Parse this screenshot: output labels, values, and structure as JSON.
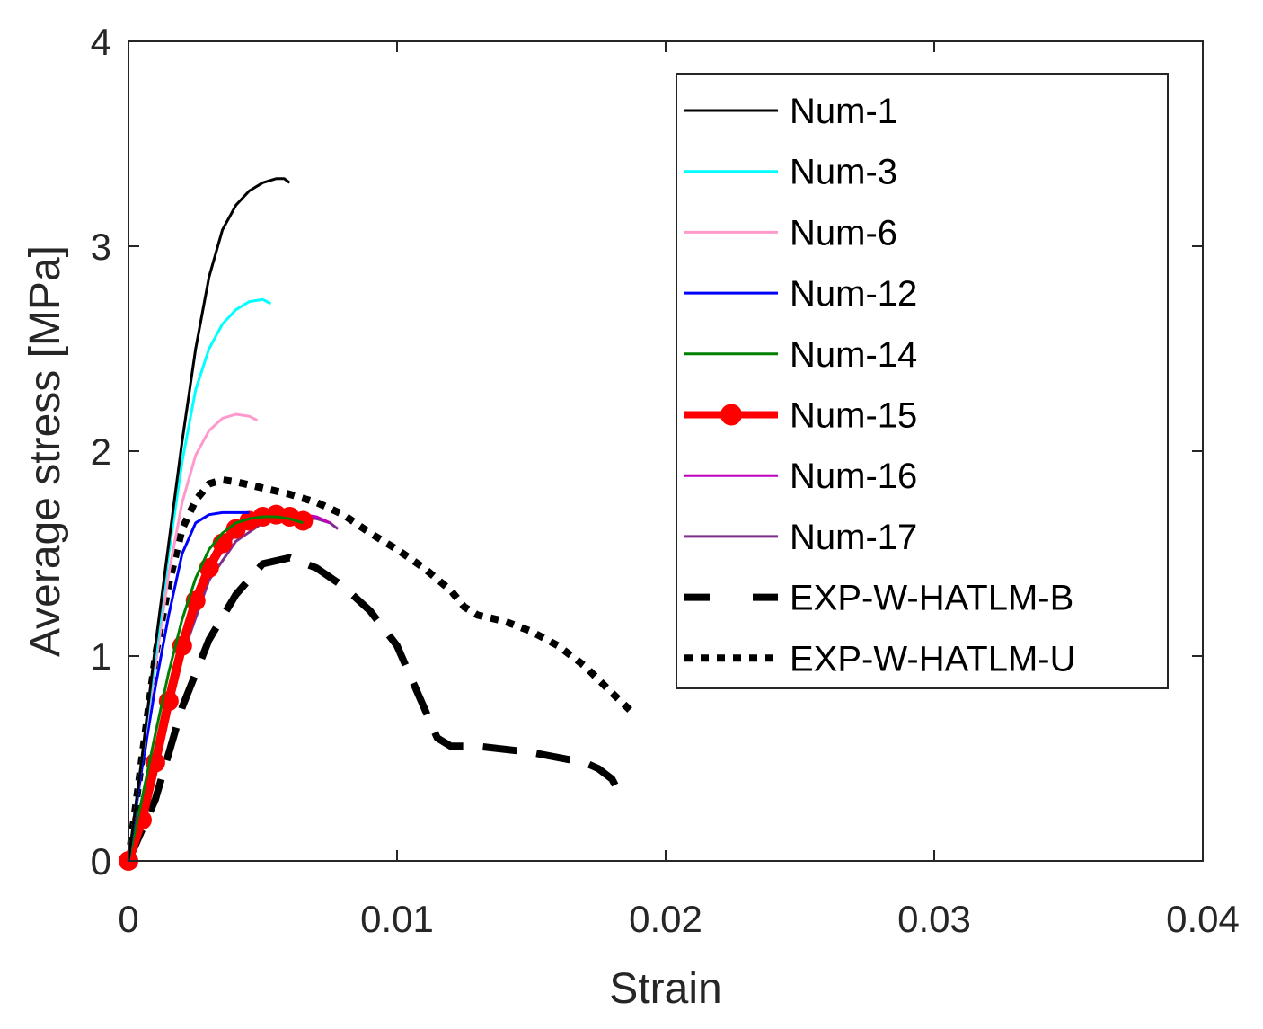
{
  "chart_data": {
    "type": "line",
    "title": "",
    "xlabel": "Strain",
    "ylabel": "Average stress [MPa]",
    "xlim": [
      0,
      0.04
    ],
    "ylim": [
      0,
      4
    ],
    "xticks": [
      0,
      0.01,
      0.02,
      0.03,
      0.04
    ],
    "xtick_labels": [
      "0",
      "0.01",
      "0.02",
      "0.03",
      "0.04"
    ],
    "yticks": [
      0,
      1,
      2,
      3,
      4
    ],
    "ytick_labels": [
      "0",
      "1",
      "2",
      "3",
      "4"
    ],
    "grid": false,
    "legend_position": "top-right",
    "series": [
      {
        "name": "Num-1",
        "color": "#000000",
        "style": "solid",
        "width": 3,
        "x": [
          0,
          0.0005,
          0.001,
          0.0015,
          0.002,
          0.0025,
          0.003,
          0.0035,
          0.004,
          0.0045,
          0.005,
          0.0055,
          0.0058,
          0.006
        ],
        "y": [
          0,
          0.5,
          1.05,
          1.55,
          2.05,
          2.5,
          2.85,
          3.08,
          3.2,
          3.27,
          3.31,
          3.33,
          3.33,
          3.31
        ]
      },
      {
        "name": "Num-3",
        "color": "#00ffff",
        "style": "solid",
        "width": 3,
        "x": [
          0,
          0.0005,
          0.001,
          0.0015,
          0.002,
          0.0025,
          0.003,
          0.0035,
          0.004,
          0.0045,
          0.005,
          0.0053
        ],
        "y": [
          0,
          0.5,
          1.0,
          1.5,
          1.95,
          2.3,
          2.5,
          2.62,
          2.69,
          2.73,
          2.74,
          2.72
        ]
      },
      {
        "name": "Num-6",
        "color": "#ff99cc",
        "style": "solid",
        "width": 3,
        "x": [
          0,
          0.0005,
          0.001,
          0.0015,
          0.002,
          0.0025,
          0.003,
          0.0035,
          0.004,
          0.0045,
          0.0048
        ],
        "y": [
          0,
          0.5,
          0.95,
          1.4,
          1.75,
          1.98,
          2.1,
          2.16,
          2.18,
          2.17,
          2.15
        ]
      },
      {
        "name": "Num-12",
        "color": "#0000ff",
        "style": "solid",
        "width": 3,
        "x": [
          0,
          0.0005,
          0.001,
          0.0015,
          0.002,
          0.0025,
          0.003,
          0.0035,
          0.004,
          0.0045
        ],
        "y": [
          0,
          0.45,
          0.85,
          1.2,
          1.5,
          1.65,
          1.69,
          1.7,
          1.7,
          1.7
        ]
      },
      {
        "name": "Num-14",
        "color": "#008000",
        "style": "solid",
        "width": 3,
        "x": [
          0,
          0.0005,
          0.001,
          0.0015,
          0.002,
          0.0025,
          0.003,
          0.0035,
          0.004,
          0.0045,
          0.005,
          0.0055,
          0.006,
          0.0065
        ],
        "y": [
          0,
          0.3,
          0.62,
          0.92,
          1.18,
          1.38,
          1.52,
          1.6,
          1.65,
          1.67,
          1.68,
          1.68,
          1.67,
          1.65
        ]
      },
      {
        "name": "Num-15",
        "color": "#ff0000",
        "style": "solid-markers",
        "width": 10,
        "x": [
          0,
          0.0005,
          0.001,
          0.0015,
          0.002,
          0.0025,
          0.003,
          0.0035,
          0.004,
          0.0045,
          0.005,
          0.0055,
          0.006,
          0.0065
        ],
        "y": [
          0,
          0.2,
          0.48,
          0.78,
          1.05,
          1.27,
          1.43,
          1.55,
          1.62,
          1.66,
          1.68,
          1.69,
          1.68,
          1.66
        ]
      },
      {
        "name": "Num-16",
        "color": "#bf00bf",
        "style": "solid",
        "width": 3,
        "x": [
          0,
          0.001,
          0.002,
          0.003,
          0.004,
          0.005,
          0.006,
          0.0065,
          0.007,
          0.0075
        ],
        "y": [
          0,
          0.5,
          1.05,
          1.42,
          1.6,
          1.67,
          1.69,
          1.69,
          1.68,
          1.65
        ]
      },
      {
        "name": "Num-17",
        "color": "#7e2f8e",
        "style": "solid",
        "width": 3,
        "x": [
          0,
          0.001,
          0.002,
          0.003,
          0.004,
          0.005,
          0.006,
          0.007,
          0.0075,
          0.0078
        ],
        "y": [
          0,
          0.45,
          1.0,
          1.37,
          1.56,
          1.65,
          1.68,
          1.67,
          1.65,
          1.62
        ]
      },
      {
        "name": "EXP-W-HATLM-B",
        "color": "#000000",
        "style": "dashed",
        "width": 8,
        "x": [
          0,
          0.001,
          0.002,
          0.003,
          0.004,
          0.005,
          0.006,
          0.007,
          0.008,
          0.009,
          0.01,
          0.011,
          0.0115,
          0.012,
          0.013,
          0.015,
          0.017,
          0.0175,
          0.018,
          0.0182
        ],
        "y": [
          0,
          0.3,
          0.75,
          1.08,
          1.3,
          1.45,
          1.48,
          1.43,
          1.34,
          1.22,
          1.05,
          0.75,
          0.6,
          0.56,
          0.56,
          0.53,
          0.48,
          0.45,
          0.4,
          0.35
        ]
      },
      {
        "name": "EXP-W-HATLM-U",
        "color": "#000000",
        "style": "dotted",
        "width": 8,
        "x": [
          0,
          0.0005,
          0.001,
          0.0015,
          0.002,
          0.0025,
          0.003,
          0.0035,
          0.004,
          0.005,
          0.006,
          0.007,
          0.008,
          0.009,
          0.01,
          0.011,
          0.012,
          0.0125,
          0.013,
          0.014,
          0.015,
          0.016,
          0.017,
          0.018,
          0.0188
        ],
        "y": [
          0,
          0.5,
          1.0,
          1.35,
          1.62,
          1.76,
          1.84,
          1.86,
          1.85,
          1.82,
          1.79,
          1.75,
          1.69,
          1.6,
          1.52,
          1.43,
          1.32,
          1.24,
          1.2,
          1.17,
          1.12,
          1.05,
          0.95,
          0.82,
          0.72
        ]
      }
    ]
  }
}
